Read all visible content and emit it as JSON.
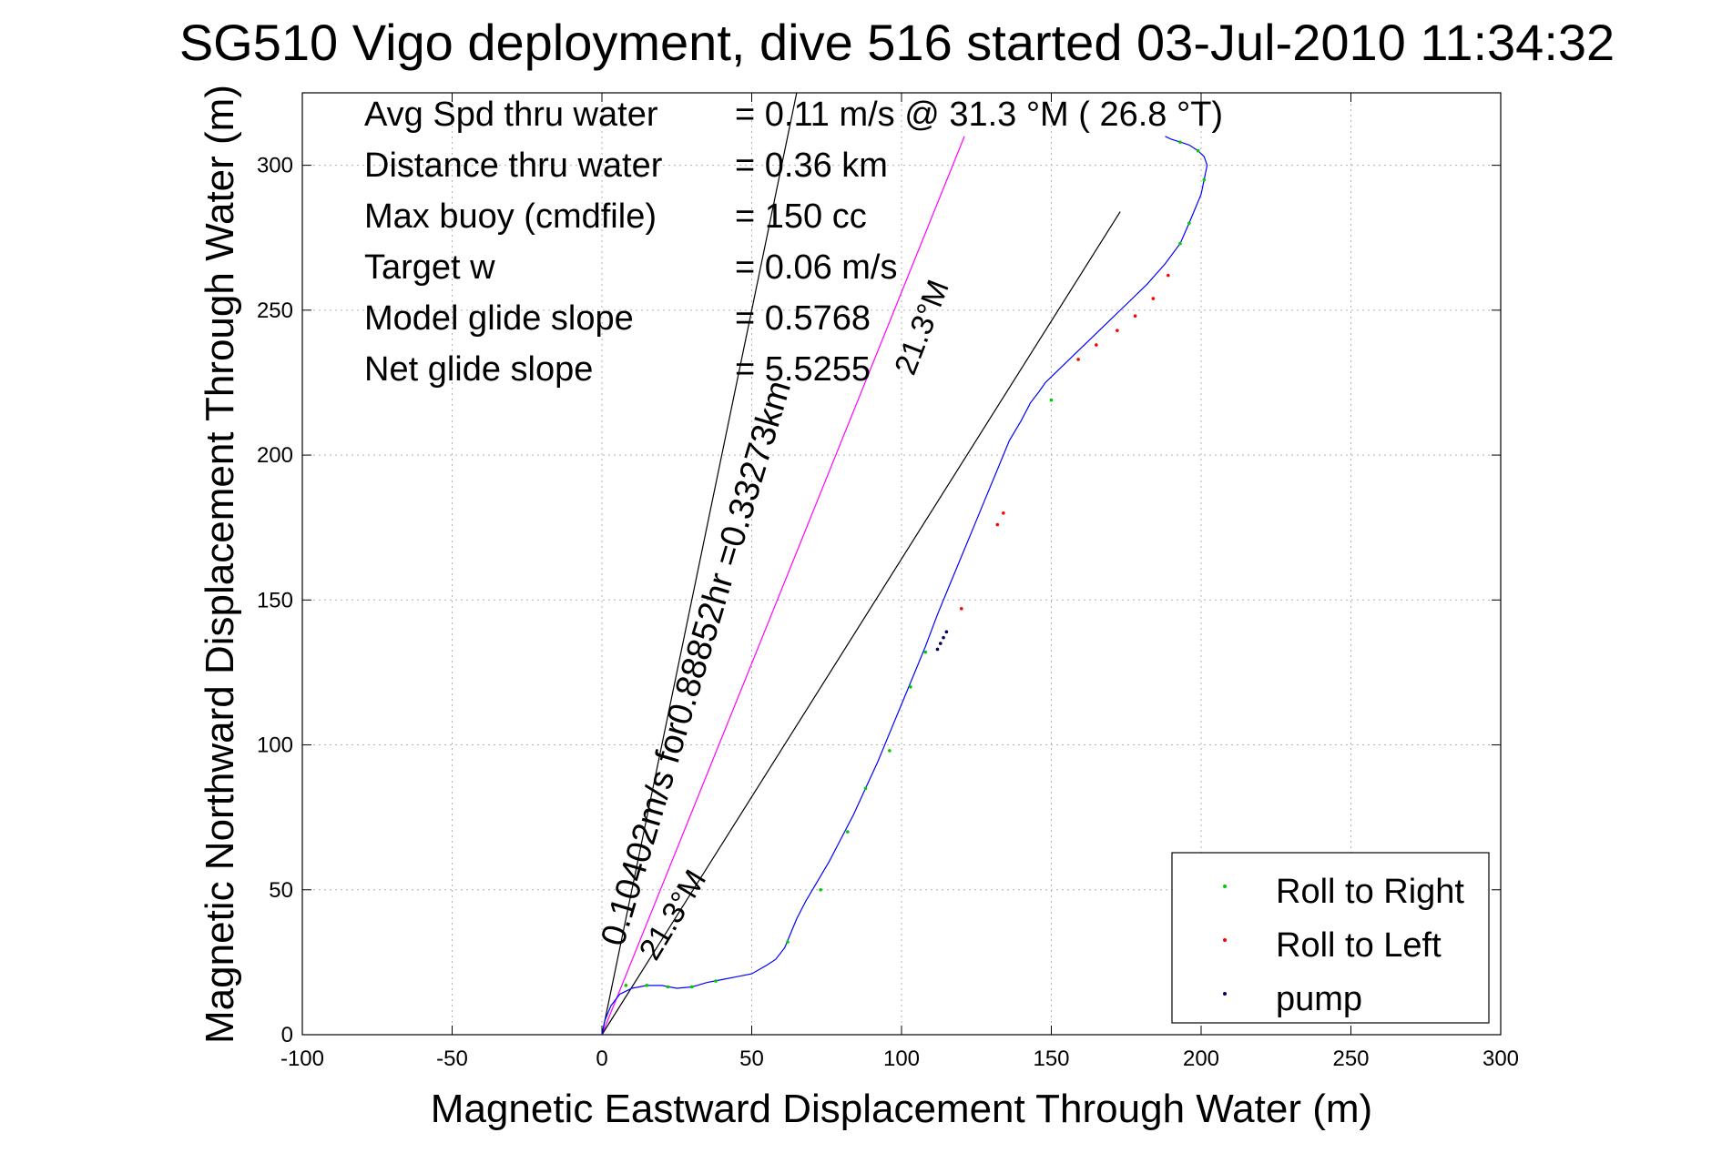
{
  "chart_data": {
    "type": "line",
    "title": "SG510 Vigo deployment, dive 516 started 03-Jul-2010 11:34:32",
    "xlabel": "Magnetic Eastward Displacement Through Water (m)",
    "ylabel": "Magnetic Northward Displacement Through Water (m)",
    "xlim": [
      -100,
      300
    ],
    "ylim": [
      0,
      325
    ],
    "xticks": [
      "-100",
      "-50",
      "0",
      "50",
      "100",
      "150",
      "200",
      "250",
      "300"
    ],
    "yticks": [
      "0",
      "50",
      "100",
      "150",
      "200",
      "250",
      "300"
    ],
    "grid": true,
    "stats": [
      {
        "label": "Avg Spd thru water",
        "value": "=  0.11 m/s @  31.3 °M ( 26.8 °T)"
      },
      {
        "label": "Distance thru water",
        "value": "=  0.36 km"
      },
      {
        "label": "Max buoy (cmdfile)",
        "value": "= 150 cc"
      },
      {
        "label": "Target w",
        "value": "= 0.06 m/s"
      },
      {
        "label": "Model glide slope",
        "value": "= 0.5768"
      },
      {
        "label": "Net glide slope",
        "value": "= 5.5255"
      }
    ],
    "annotations": [
      {
        "text": "0.10402m/s for0.88852hr =0.33273km",
        "anchor": [
          7,
          30
        ]
      },
      {
        "text": "21.3°M",
        "anchor": [
          18,
          25
        ]
      },
      {
        "text": "21.3°M",
        "anchor": [
          104,
          227
        ]
      }
    ],
    "reference_lines": [
      {
        "name": "track-magenta",
        "color": "#ff00ff",
        "from": [
          0,
          0
        ],
        "to": [
          121,
          310
        ]
      },
      {
        "name": "black-1",
        "color": "#000000",
        "from": [
          0,
          0
        ],
        "to": [
          65,
          325
        ]
      },
      {
        "name": "black-2",
        "color": "#000000",
        "from": [
          0,
          0
        ],
        "to": [
          173,
          284
        ]
      }
    ],
    "series": [
      {
        "color": "#0000ff",
        "x": [
          0,
          1,
          3,
          6,
          10,
          15,
          20,
          25,
          30,
          35,
          40,
          45,
          50,
          55,
          58,
          61,
          63,
          65,
          68,
          72,
          76,
          80,
          84,
          88,
          92,
          96,
          100,
          104,
          108,
          112,
          116,
          120,
          124,
          128,
          132,
          136,
          140,
          143,
          146,
          148,
          150,
          152,
          155,
          158,
          163,
          168,
          175,
          182,
          188,
          193,
          196,
          198,
          200,
          201,
          202,
          201,
          199,
          196,
          193,
          190,
          188
        ],
        "y": [
          0,
          5,
          10,
          14,
          16,
          17,
          17,
          16,
          16.5,
          18,
          19,
          20,
          21,
          24,
          26,
          30,
          35,
          40,
          46,
          53,
          60,
          68,
          76,
          85,
          94,
          104,
          114,
          124,
          134,
          145,
          155,
          165,
          175,
          185,
          195,
          205,
          212,
          218,
          222,
          225,
          227,
          229,
          232,
          235,
          240,
          245,
          252,
          259,
          266,
          273,
          280,
          285,
          290,
          295,
          300,
          303,
          305,
          307,
          308,
          309,
          310
        ]
      }
    ],
    "markers": [
      {
        "name": "Roll to Right",
        "color": "#00cc00",
        "points": [
          [
            8,
            17
          ],
          [
            15,
            17
          ],
          [
            22,
            16.5
          ],
          [
            30,
            16.5
          ],
          [
            38,
            18.5
          ],
          [
            62,
            32
          ],
          [
            73,
            50
          ],
          [
            82,
            70
          ],
          [
            88,
            85
          ],
          [
            96,
            98
          ],
          [
            103,
            120
          ],
          [
            108,
            132
          ],
          [
            150,
            219
          ],
          [
            193,
            273
          ],
          [
            196,
            280
          ],
          [
            201,
            295
          ],
          [
            199,
            305
          ],
          [
            193,
            308
          ]
        ]
      },
      {
        "name": "Roll to Left",
        "color": "#ff0000",
        "points": [
          [
            132,
            176
          ],
          [
            134,
            180
          ],
          [
            120,
            147
          ],
          [
            159,
            233
          ],
          [
            165,
            238
          ],
          [
            172,
            243
          ],
          [
            178,
            248
          ],
          [
            184,
            254
          ],
          [
            189,
            262
          ]
        ]
      },
      {
        "name": "pump",
        "color": "#000066",
        "points": [
          [
            112,
            133
          ],
          [
            113,
            135
          ],
          [
            114,
            137
          ],
          [
            115,
            139
          ]
        ]
      }
    ],
    "legend": {
      "placement": "bottom-right",
      "entries": [
        "Roll to Right",
        "Roll to Left",
        "pump"
      ]
    }
  }
}
